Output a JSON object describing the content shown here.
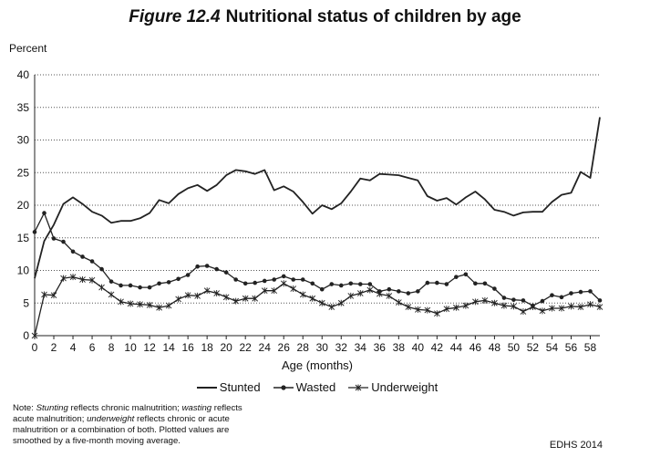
{
  "header": {
    "figure_label": "Figure 12.4",
    "title": "Nutritional status of children by age"
  },
  "note": {
    "prefix": "Note: ",
    "term1": "Stunting",
    "text1": " reflects chronic malnutrition; ",
    "term2": "wasting",
    "text2": " reflects acute malnutrition; ",
    "term3": "underweight",
    "text3": " reflects chronic or acute malnutrition or a combination of both. Plotted values are smoothed by a five-month moving average."
  },
  "source": "EDHS 2014",
  "chart_data": {
    "type": "line",
    "title": "Nutritional status of children by age",
    "ylabel": "Percent",
    "xlabel": "Age (months)",
    "ylim": [
      0,
      40
    ],
    "xlim": [
      0,
      59
    ],
    "yticks": [
      0,
      5,
      10,
      15,
      20,
      25,
      30,
      35,
      40
    ],
    "xticks": [
      0,
      2,
      4,
      6,
      8,
      10,
      12,
      14,
      16,
      18,
      20,
      22,
      24,
      26,
      28,
      30,
      32,
      34,
      36,
      38,
      40,
      42,
      44,
      46,
      48,
      50,
      52,
      54,
      56,
      58
    ],
    "grid": "horizontal dotted",
    "legend_position": "bottom",
    "x": [
      0,
      1,
      2,
      3,
      4,
      5,
      6,
      7,
      8,
      9,
      10,
      11,
      12,
      13,
      14,
      15,
      16,
      17,
      18,
      19,
      20,
      21,
      22,
      23,
      24,
      25,
      26,
      27,
      28,
      29,
      30,
      31,
      32,
      33,
      34,
      35,
      36,
      37,
      38,
      39,
      40,
      41,
      42,
      43,
      44,
      45,
      46,
      47,
      48,
      49,
      50,
      51,
      52,
      53,
      54,
      55,
      56,
      57,
      58,
      59
    ],
    "series": [
      {
        "name": "Stunted",
        "marker": "none",
        "color": "#222222",
        "values": [
          8.8,
          14.5,
          17.0,
          20.2,
          21.2,
          20.2,
          19.0,
          18.4,
          17.3,
          17.6,
          17.6,
          18.0,
          18.8,
          20.8,
          20.3,
          21.7,
          22.6,
          23.1,
          22.2,
          23.1,
          24.6,
          25.4,
          25.2,
          24.8,
          25.4,
          22.3,
          22.9,
          22.1,
          20.5,
          18.7,
          20.0,
          19.4,
          20.3,
          22.1,
          24.1,
          23.8,
          24.8,
          24.7,
          24.6,
          24.2,
          23.8,
          21.4,
          20.7,
          21.1,
          20.1,
          21.2,
          22.1,
          20.9,
          19.3,
          19.0,
          18.4,
          18.9,
          19.0,
          19.0,
          20.5,
          21.6,
          21.9,
          25.1,
          24.2,
          33.5
        ]
      },
      {
        "name": "Wasted",
        "marker": "dot",
        "color": "#222222",
        "values": [
          15.9,
          18.8,
          14.9,
          14.4,
          12.9,
          12.1,
          11.4,
          10.2,
          8.3,
          7.7,
          7.7,
          7.4,
          7.4,
          8.0,
          8.2,
          8.7,
          9.3,
          10.6,
          10.7,
          10.2,
          9.7,
          8.6,
          8.0,
          8.1,
          8.4,
          8.6,
          9.1,
          8.6,
          8.6,
          8.0,
          7.1,
          7.9,
          7.7,
          8.0,
          7.9,
          7.9,
          6.8,
          7.1,
          6.8,
          6.5,
          6.8,
          8.1,
          8.1,
          7.9,
          9.0,
          9.4,
          8.0,
          8.0,
          7.2,
          5.8,
          5.5,
          5.4,
          4.6,
          5.3,
          6.2,
          5.9,
          6.5,
          6.7,
          6.8,
          5.4
        ]
      },
      {
        "name": "Underweight",
        "marker": "asterisk",
        "color": "#222222",
        "values": [
          0.0,
          6.3,
          6.2,
          8.8,
          9.0,
          8.6,
          8.5,
          7.4,
          6.3,
          5.2,
          4.9,
          4.8,
          4.7,
          4.3,
          4.6,
          5.6,
          6.2,
          6.1,
          6.9,
          6.5,
          5.9,
          5.3,
          5.7,
          5.7,
          6.9,
          6.9,
          8.0,
          7.2,
          6.3,
          5.7,
          5.0,
          4.4,
          5.0,
          6.1,
          6.5,
          7.0,
          6.4,
          6.1,
          5.1,
          4.4,
          4.0,
          3.9,
          3.4,
          4.1,
          4.3,
          4.6,
          5.2,
          5.4,
          5.0,
          4.6,
          4.5,
          3.7,
          4.4,
          3.8,
          4.2,
          4.2,
          4.5,
          4.4,
          4.8,
          4.4
        ]
      }
    ]
  }
}
